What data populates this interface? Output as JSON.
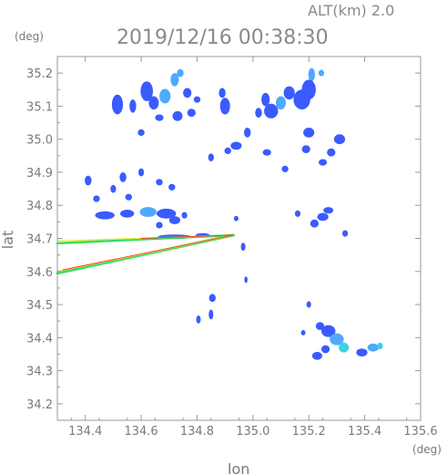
{
  "header": {
    "altitude_label": "ALT(km) 2.0",
    "timestamp": "2019/12/16 00:38:30"
  },
  "chart_data": {
    "type": "heatmap",
    "title": "2019/12/16 00:38:30",
    "subtitle": "ALT(km) 2.0",
    "xlabel": "lon",
    "ylabel": "lat",
    "x_unit": "(deg)",
    "y_unit": "(deg)",
    "xlim": [
      134.3,
      135.6
    ],
    "ylim": [
      34.15,
      35.25
    ],
    "x_ticks": [
      "134.4",
      "134.6",
      "134.8",
      "135.0",
      "135.2",
      "135.4",
      "135.6"
    ],
    "y_ticks": [
      "34.2",
      "34.3",
      "34.4",
      "34.5",
      "34.6",
      "34.7",
      "34.8",
      "34.9",
      "35.0",
      "35.1",
      "35.2"
    ],
    "radar_site": {
      "lon": 134.93,
      "lat": 34.71
    },
    "colors": {
      "weak": "#3a5bff",
      "moderate": "#4fa9ff",
      "strong": "#3ad2e0",
      "clutter_green": "#33dd66",
      "clutter_yellow": "#e8e83a",
      "clutter_red": "#ff3322"
    },
    "echoes": [
      {
        "lon": 135.21,
        "lat": 35.195,
        "rx": 0.012,
        "ry": 0.02,
        "level": "moderate"
      },
      {
        "lon": 135.245,
        "lat": 35.2,
        "rx": 0.01,
        "ry": 0.01,
        "level": "moderate"
      },
      {
        "lon": 135.2,
        "lat": 35.15,
        "rx": 0.025,
        "ry": 0.03,
        "level": "weak"
      },
      {
        "lon": 135.175,
        "lat": 35.12,
        "rx": 0.03,
        "ry": 0.03,
        "level": "weak"
      },
      {
        "lon": 135.13,
        "lat": 35.14,
        "rx": 0.02,
        "ry": 0.02,
        "level": "weak"
      },
      {
        "lon": 135.1,
        "lat": 35.11,
        "rx": 0.018,
        "ry": 0.02,
        "level": "moderate"
      },
      {
        "lon": 135.065,
        "lat": 35.085,
        "rx": 0.025,
        "ry": 0.022,
        "level": "weak"
      },
      {
        "lon": 135.045,
        "lat": 35.12,
        "rx": 0.015,
        "ry": 0.02,
        "level": "weak"
      },
      {
        "lon": 135.02,
        "lat": 35.08,
        "rx": 0.012,
        "ry": 0.015,
        "level": "weak"
      },
      {
        "lon": 134.9,
        "lat": 35.1,
        "rx": 0.018,
        "ry": 0.025,
        "level": "weak"
      },
      {
        "lon": 134.89,
        "lat": 35.14,
        "rx": 0.012,
        "ry": 0.015,
        "level": "weak"
      },
      {
        "lon": 134.98,
        "lat": 35.02,
        "rx": 0.012,
        "ry": 0.015,
        "level": "weak"
      },
      {
        "lon": 134.94,
        "lat": 34.98,
        "rx": 0.02,
        "ry": 0.012,
        "level": "weak"
      },
      {
        "lon": 135.05,
        "lat": 34.96,
        "rx": 0.015,
        "ry": 0.01,
        "level": "weak"
      },
      {
        "lon": 135.115,
        "lat": 34.91,
        "rx": 0.012,
        "ry": 0.01,
        "level": "weak"
      },
      {
        "lon": 135.2,
        "lat": 35.02,
        "rx": 0.02,
        "ry": 0.015,
        "level": "weak"
      },
      {
        "lon": 135.19,
        "lat": 34.97,
        "rx": 0.015,
        "ry": 0.012,
        "level": "weak"
      },
      {
        "lon": 135.31,
        "lat": 35.0,
        "rx": 0.02,
        "ry": 0.015,
        "level": "weak"
      },
      {
        "lon": 135.28,
        "lat": 34.96,
        "rx": 0.015,
        "ry": 0.012,
        "level": "weak"
      },
      {
        "lon": 135.25,
        "lat": 34.93,
        "rx": 0.015,
        "ry": 0.01,
        "level": "weak"
      },
      {
        "lon": 134.91,
        "lat": 34.965,
        "rx": 0.012,
        "ry": 0.01,
        "level": "weak"
      },
      {
        "lon": 134.85,
        "lat": 34.945,
        "rx": 0.01,
        "ry": 0.012,
        "level": "weak"
      },
      {
        "lon": 134.62,
        "lat": 35.145,
        "rx": 0.022,
        "ry": 0.03,
        "level": "weak"
      },
      {
        "lon": 134.645,
        "lat": 35.11,
        "rx": 0.018,
        "ry": 0.02,
        "level": "weak"
      },
      {
        "lon": 134.685,
        "lat": 35.13,
        "rx": 0.02,
        "ry": 0.022,
        "level": "moderate"
      },
      {
        "lon": 134.72,
        "lat": 35.18,
        "rx": 0.015,
        "ry": 0.02,
        "level": "moderate"
      },
      {
        "lon": 134.74,
        "lat": 35.2,
        "rx": 0.012,
        "ry": 0.012,
        "level": "moderate"
      },
      {
        "lon": 134.765,
        "lat": 35.14,
        "rx": 0.015,
        "ry": 0.015,
        "level": "weak"
      },
      {
        "lon": 134.8,
        "lat": 35.12,
        "rx": 0.012,
        "ry": 0.01,
        "level": "weak"
      },
      {
        "lon": 134.78,
        "lat": 35.08,
        "rx": 0.015,
        "ry": 0.012,
        "level": "weak"
      },
      {
        "lon": 134.73,
        "lat": 35.07,
        "rx": 0.018,
        "ry": 0.015,
        "level": "weak"
      },
      {
        "lon": 134.665,
        "lat": 35.065,
        "rx": 0.015,
        "ry": 0.01,
        "level": "weak"
      },
      {
        "lon": 134.6,
        "lat": 35.02,
        "rx": 0.012,
        "ry": 0.01,
        "level": "weak"
      },
      {
        "lon": 134.57,
        "lat": 35.1,
        "rx": 0.012,
        "ry": 0.02,
        "level": "weak"
      },
      {
        "lon": 134.515,
        "lat": 35.105,
        "rx": 0.02,
        "ry": 0.03,
        "level": "weak"
      },
      {
        "lon": 134.41,
        "lat": 34.875,
        "rx": 0.012,
        "ry": 0.015,
        "level": "weak"
      },
      {
        "lon": 134.535,
        "lat": 34.885,
        "rx": 0.012,
        "ry": 0.015,
        "level": "weak"
      },
      {
        "lon": 134.5,
        "lat": 34.85,
        "rx": 0.01,
        "ry": 0.012,
        "level": "weak"
      },
      {
        "lon": 134.44,
        "lat": 34.82,
        "rx": 0.012,
        "ry": 0.01,
        "level": "weak"
      },
      {
        "lon": 134.555,
        "lat": 34.825,
        "rx": 0.012,
        "ry": 0.01,
        "level": "weak"
      },
      {
        "lon": 134.6,
        "lat": 34.9,
        "rx": 0.01,
        "ry": 0.012,
        "level": "weak"
      },
      {
        "lon": 134.665,
        "lat": 34.87,
        "rx": 0.012,
        "ry": 0.01,
        "level": "weak"
      },
      {
        "lon": 134.71,
        "lat": 34.855,
        "rx": 0.012,
        "ry": 0.01,
        "level": "weak"
      },
      {
        "lon": 134.47,
        "lat": 34.77,
        "rx": 0.035,
        "ry": 0.012,
        "level": "weak"
      },
      {
        "lon": 134.55,
        "lat": 34.775,
        "rx": 0.025,
        "ry": 0.012,
        "level": "weak"
      },
      {
        "lon": 134.625,
        "lat": 34.78,
        "rx": 0.03,
        "ry": 0.015,
        "level": "moderate"
      },
      {
        "lon": 134.69,
        "lat": 34.775,
        "rx": 0.035,
        "ry": 0.015,
        "level": "weak"
      },
      {
        "lon": 134.72,
        "lat": 34.755,
        "rx": 0.02,
        "ry": 0.012,
        "level": "weak"
      },
      {
        "lon": 134.665,
        "lat": 34.74,
        "rx": 0.012,
        "ry": 0.01,
        "level": "weak"
      },
      {
        "lon": 134.755,
        "lat": 34.77,
        "rx": 0.01,
        "ry": 0.01,
        "level": "weak"
      },
      {
        "lon": 134.72,
        "lat": 34.705,
        "rx": 0.06,
        "ry": 0.007,
        "level": "weak"
      },
      {
        "lon": 134.82,
        "lat": 34.71,
        "rx": 0.025,
        "ry": 0.006,
        "level": "weak"
      },
      {
        "lon": 135.27,
        "lat": 34.785,
        "rx": 0.018,
        "ry": 0.01,
        "level": "weak"
      },
      {
        "lon": 135.25,
        "lat": 34.765,
        "rx": 0.02,
        "ry": 0.012,
        "level": "weak"
      },
      {
        "lon": 135.22,
        "lat": 34.745,
        "rx": 0.015,
        "ry": 0.012,
        "level": "weak"
      },
      {
        "lon": 135.16,
        "lat": 34.775,
        "rx": 0.01,
        "ry": 0.01,
        "level": "weak"
      },
      {
        "lon": 135.33,
        "lat": 34.715,
        "rx": 0.01,
        "ry": 0.01,
        "level": "weak"
      },
      {
        "lon": 134.94,
        "lat": 34.76,
        "rx": 0.008,
        "ry": 0.008,
        "level": "weak"
      },
      {
        "lon": 134.965,
        "lat": 34.675,
        "rx": 0.008,
        "ry": 0.012,
        "level": "weak"
      },
      {
        "lon": 134.975,
        "lat": 34.575,
        "rx": 0.006,
        "ry": 0.01,
        "level": "weak"
      },
      {
        "lon": 134.855,
        "lat": 34.52,
        "rx": 0.012,
        "ry": 0.012,
        "level": "weak"
      },
      {
        "lon": 134.85,
        "lat": 34.47,
        "rx": 0.008,
        "ry": 0.015,
        "level": "weak"
      },
      {
        "lon": 134.805,
        "lat": 34.455,
        "rx": 0.008,
        "ry": 0.012,
        "level": "weak"
      },
      {
        "lon": 135.2,
        "lat": 34.5,
        "rx": 0.008,
        "ry": 0.01,
        "level": "weak"
      },
      {
        "lon": 135.18,
        "lat": 34.415,
        "rx": 0.008,
        "ry": 0.008,
        "level": "weak"
      },
      {
        "lon": 135.24,
        "lat": 34.435,
        "rx": 0.015,
        "ry": 0.012,
        "level": "weak"
      },
      {
        "lon": 135.27,
        "lat": 34.42,
        "rx": 0.025,
        "ry": 0.018,
        "level": "weak"
      },
      {
        "lon": 135.3,
        "lat": 34.395,
        "rx": 0.025,
        "ry": 0.018,
        "level": "moderate"
      },
      {
        "lon": 135.325,
        "lat": 34.37,
        "rx": 0.018,
        "ry": 0.015,
        "level": "strong"
      },
      {
        "lon": 135.26,
        "lat": 34.365,
        "rx": 0.015,
        "ry": 0.012,
        "level": "weak"
      },
      {
        "lon": 135.23,
        "lat": 34.345,
        "rx": 0.018,
        "ry": 0.012,
        "level": "weak"
      },
      {
        "lon": 135.39,
        "lat": 34.355,
        "rx": 0.02,
        "ry": 0.012,
        "level": "weak"
      },
      {
        "lon": 135.43,
        "lat": 34.37,
        "rx": 0.02,
        "ry": 0.012,
        "level": "moderate"
      },
      {
        "lon": 135.455,
        "lat": 34.375,
        "rx": 0.01,
        "ry": 0.01,
        "level": "strong"
      }
    ],
    "clutter_rays": [
      {
        "color": "clutter_green",
        "from": [
          134.3,
          34.685
        ],
        "to": [
          134.93,
          34.71
        ],
        "width": 2.5
      },
      {
        "color": "clutter_yellow",
        "from": [
          134.3,
          34.692
        ],
        "to": [
          134.93,
          34.71
        ],
        "width": 1.2
      },
      {
        "color": "clutter_green",
        "from": [
          134.3,
          34.595
        ],
        "to": [
          134.93,
          34.71
        ],
        "width": 3
      },
      {
        "color": "clutter_yellow",
        "from": [
          134.3,
          34.6
        ],
        "to": [
          134.93,
          34.71
        ],
        "width": 1.5
      },
      {
        "color": "clutter_red",
        "from": [
          134.32,
          34.605
        ],
        "to": [
          134.93,
          34.71
        ],
        "width": 0.9
      },
      {
        "color": "clutter_red",
        "from": [
          134.6,
          34.7
        ],
        "to": [
          134.93,
          34.71
        ],
        "width": 0.9
      }
    ]
  }
}
